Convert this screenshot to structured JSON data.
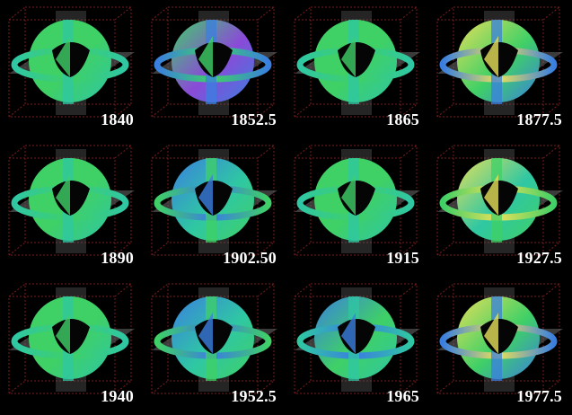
{
  "figure": {
    "panels": [
      {
        "year": "1840",
        "palette": "green"
      },
      {
        "year": "1852.5",
        "palette": "green-blue-magenta"
      },
      {
        "year": "1865",
        "palette": "green"
      },
      {
        "year": "1877.5",
        "palette": "yellow-blue"
      },
      {
        "year": "1890",
        "palette": "green"
      },
      {
        "year": "1902.50",
        "palette": "blue-green"
      },
      {
        "year": "1915",
        "palette": "green"
      },
      {
        "year": "1927.5",
        "palette": "yellow-green"
      },
      {
        "year": "1940",
        "palette": "green"
      },
      {
        "year": "1952.5",
        "palette": "blue-green"
      },
      {
        "year": "1965",
        "palette": "blue"
      },
      {
        "year": "1977.5",
        "palette": "yellow-blue"
      }
    ],
    "colors": {
      "background": "#000000",
      "label": "#ffffff",
      "box_edge": "#7a1c1c",
      "plane": "#6b6b6b",
      "green": "#3fd066",
      "teal": "#2fc7a3",
      "blue": "#3a7fe0",
      "yellow": "#e6e05a",
      "magenta": "#8a4ad8"
    }
  }
}
